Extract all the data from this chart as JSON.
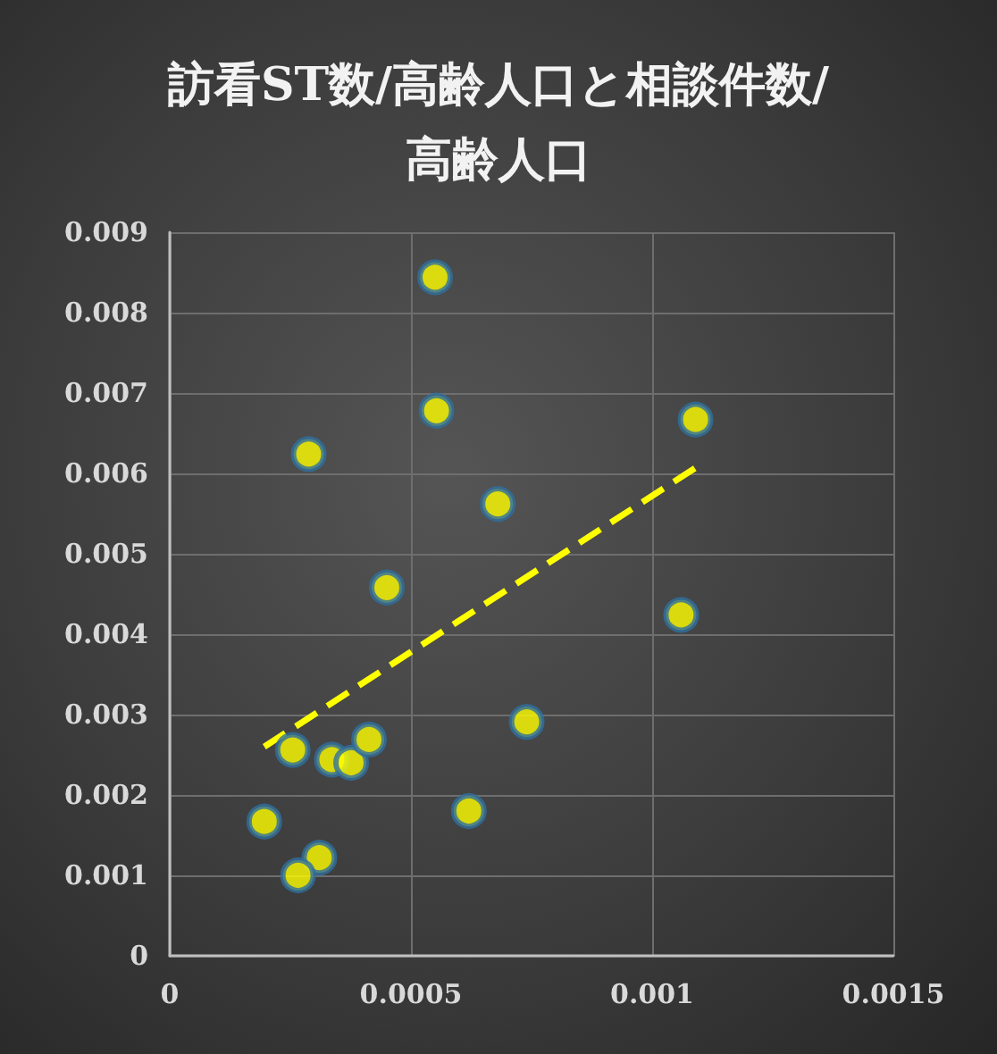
{
  "chart_data": {
    "type": "scatter",
    "title": "訪看ST数/高齢人口と相談件数/高齢人口",
    "xlim": [
      0,
      0.0015
    ],
    "xticks": [
      0,
      0.0005,
      0.001,
      0.0015
    ],
    "ylim": [
      0,
      0.009
    ],
    "yticks": [
      0,
      0.001,
      0.002,
      0.003,
      0.004,
      0.005,
      0.006,
      0.007,
      0.008,
      0.009
    ],
    "grid": true,
    "series": [
      {
        "color": "#ffff00",
        "marker": "circle",
        "x": [
          0.00055,
          0.000553,
          0.000288,
          0.00068,
          0.00045,
          0.00106,
          0.00109,
          0.00074,
          0.000255,
          0.000336,
          0.000376,
          0.000413,
          0.000196,
          0.00062,
          0.00031,
          0.000266
        ],
        "values": [
          0.00844,
          0.00678,
          0.00624,
          0.00562,
          0.00458,
          0.00424,
          0.00667,
          0.00291,
          0.00256,
          0.00244,
          0.0024,
          0.00269,
          0.00167,
          0.0018,
          0.00122,
          0.001
        ]
      },
      {
        "type": "line",
        "color": "#ffff00",
        "line_style": "dashed",
        "x": [
          0.000196,
          0.00109
        ],
        "values": [
          0.0026,
          0.00607
        ]
      }
    ]
  }
}
